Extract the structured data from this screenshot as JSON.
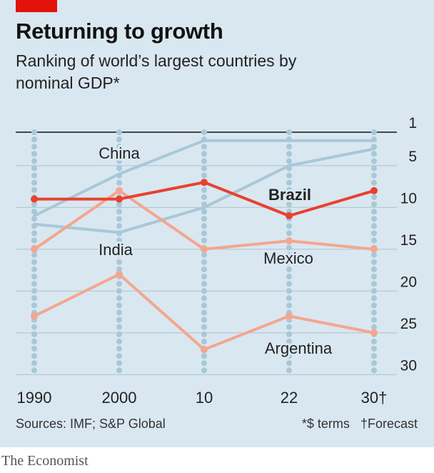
{
  "header": {
    "title": "Returning to growth",
    "subtitle": "Ranking of world’s largest countries by nominal GDP*"
  },
  "footer": {
    "sources": "Sources: IMF; S&P Global",
    "note_terms": "*$ terms",
    "note_forecast": "†Forecast"
  },
  "brand": "The Economist",
  "colors": {
    "background": "#d9e7f0",
    "brazil": "#e8412f",
    "other_highlight": "#f4a68e",
    "china_india": "#a8c8d8",
    "gridline": "#b2c7d3",
    "dotted_column": "#a8c8d8",
    "accent_tag": "#e3120b"
  },
  "chart_data": {
    "type": "line",
    "title": "Returning to growth",
    "subtitle": "Ranking of world’s largest countries by nominal GDP*",
    "x": [
      "1990",
      "2000",
      "10",
      "22",
      "30†"
    ],
    "y_axis": {
      "label": "",
      "inverted": true,
      "ylim": [
        1,
        30
      ],
      "ticks": [
        "1",
        "5",
        "10",
        "15",
        "20",
        "25",
        "30"
      ],
      "position": "right"
    },
    "grid": true,
    "series": [
      {
        "name": "China",
        "values": [
          11,
          6,
          2,
          2,
          2
        ],
        "color": "#a8c8d8"
      },
      {
        "name": "India",
        "values": [
          12,
          13,
          10,
          5,
          3
        ],
        "color": "#a8c8d8"
      },
      {
        "name": "Brazil",
        "values": [
          9,
          9,
          7,
          11,
          8
        ],
        "color": "#e8412f",
        "bold": true
      },
      {
        "name": "Mexico",
        "values": [
          15,
          8,
          15,
          14,
          15
        ],
        "color": "#f4a68e"
      },
      {
        "name": "Argentina",
        "values": [
          23,
          18,
          27,
          23,
          25
        ],
        "color": "#f4a68e"
      }
    ]
  }
}
